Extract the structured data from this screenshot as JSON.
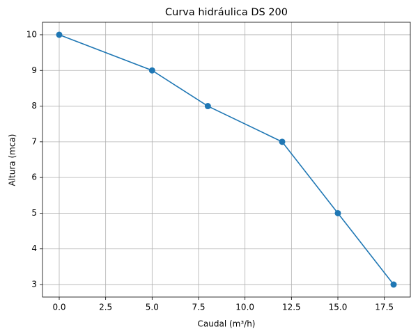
{
  "chart_data": {
    "type": "line",
    "title": "Curva hidráulica DS 200",
    "x_label": "Caudal (m³/h)",
    "y_label": "Altura (mca)",
    "x": [
      0,
      5,
      8,
      12,
      15,
      18
    ],
    "series": [
      {
        "name": "DS 200",
        "color": "#1f77b4",
        "values": [
          10,
          9,
          8,
          7,
          5,
          3
        ]
      }
    ],
    "xlim": [
      -0.9,
      18.9
    ],
    "xticks": [
      {
        "value": 0,
        "label": "0.0"
      },
      {
        "value": 2.5,
        "label": "2.5"
      },
      {
        "value": 5,
        "label": "5.0"
      },
      {
        "value": 7.5,
        "label": "7.5"
      },
      {
        "value": 10,
        "label": "10.0"
      },
      {
        "value": 12.5,
        "label": "12.5"
      },
      {
        "value": 15,
        "label": "15.0"
      },
      {
        "value": 17.5,
        "label": "17.5"
      }
    ],
    "ylim": [
      2.65,
      10.35
    ],
    "yticks": [
      3,
      4,
      5,
      6,
      7,
      8,
      9,
      10
    ],
    "grid": true
  }
}
